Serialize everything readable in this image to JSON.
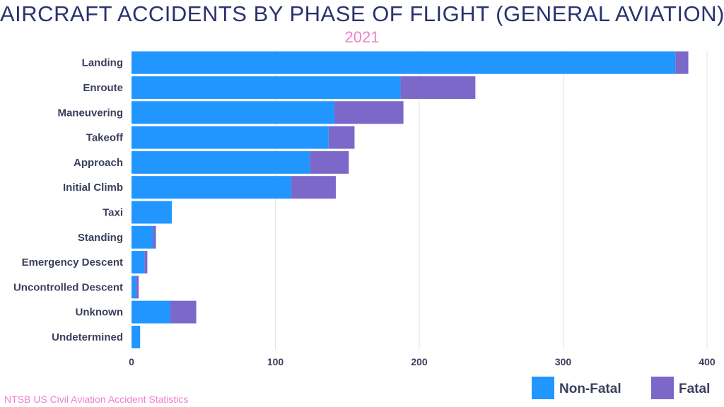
{
  "chart_data": {
    "type": "bar",
    "orientation": "horizontal",
    "stacked": true,
    "title": "AIRCRAFT ACCIDENTS BY PHASE OF FLIGHT (GENERAL AVIATION)",
    "subtitle": "2021",
    "source": "NTSB US Civil Aviation Accident Statistics",
    "categories": [
      "Landing",
      "Enroute",
      "Maneuvering",
      "Takeoff",
      "Approach",
      "Initial Climb",
      "Taxi",
      "Standing",
      "Emergency Descent",
      "Uncontrolled Descent",
      "Unknown",
      "Undetermined"
    ],
    "series": [
      {
        "name": "Non-Fatal",
        "color": "#2196ff",
        "values": [
          378,
          187,
          141,
          137,
          124,
          111,
          28,
          15,
          9,
          3,
          27,
          6
        ]
      },
      {
        "name": "Fatal",
        "color": "#7b68c9",
        "values": [
          9,
          52,
          48,
          18,
          27,
          31,
          0,
          2,
          2,
          2,
          18,
          0
        ]
      }
    ],
    "xticks": [
      0,
      100,
      200,
      300,
      400
    ],
    "xlim": [
      0,
      400
    ],
    "grid": true,
    "legend": "bottom-right"
  }
}
